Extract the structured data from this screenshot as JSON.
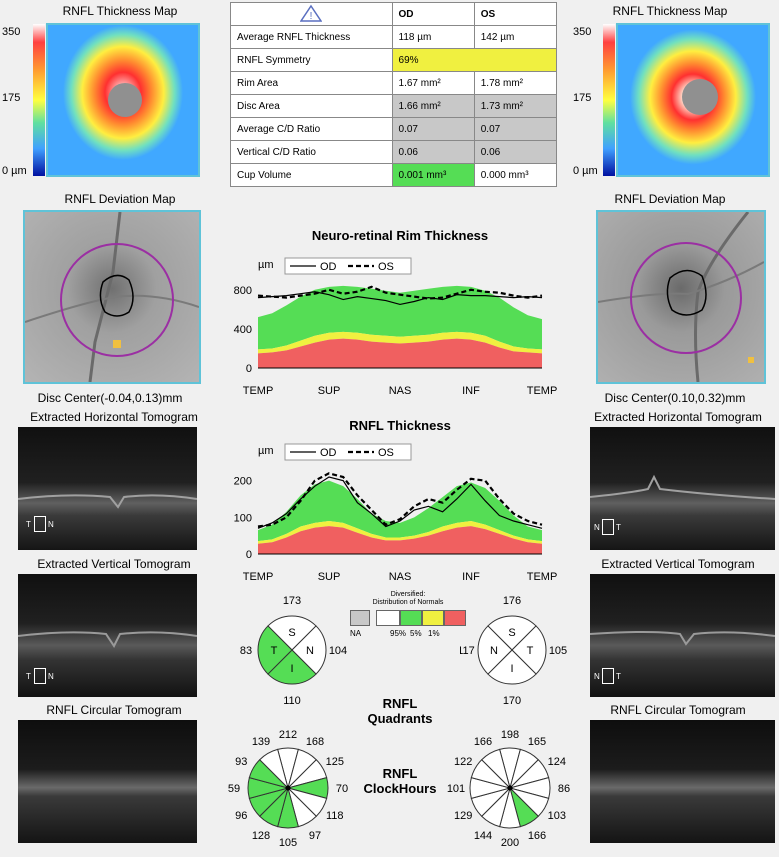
{
  "left": {
    "thickness_map_title": "RNFL Thickness Map",
    "scale_max": "350",
    "scale_mid": "175",
    "scale_min": "0 µm",
    "deviation_title": "RNFL Deviation Map",
    "disc_center": "Disc Center(-0.04,0.13)mm",
    "horiz_title": "Extracted Horizontal Tomogram",
    "vert_title": "Extracted Vertical Tomogram",
    "circ_title": "RNFL Circular Tomogram",
    "tomo_labels": {
      "t": "T",
      "n": "N"
    }
  },
  "right": {
    "thickness_map_title": "RNFL Thickness Map",
    "scale_max": "350",
    "scale_mid": "175",
    "scale_min": "0 µm",
    "deviation_title": "RNFL Deviation Map",
    "disc_center": "Disc Center(0.10,0.32)mm",
    "horiz_title": "Extracted Horizontal Tomogram",
    "vert_title": "Extracted Vertical Tomogram",
    "circ_title": "RNFL Circular Tomogram",
    "tomo_labels": {
      "n": "N",
      "t": "T"
    }
  },
  "summary": {
    "col_od": "OD",
    "col_os": "OS",
    "rows": [
      {
        "label": "Average RNFL Thickness",
        "od": "118 µm",
        "os": "142 µm",
        "style": "plain"
      },
      {
        "label": "RNFL Symmetry",
        "od": "69%",
        "os": "",
        "style": "yellow-span"
      },
      {
        "label": "Rim Area",
        "od": "1.67 mm²",
        "os": "1.78 mm²",
        "style": "plain"
      },
      {
        "label": "Disc Area",
        "od": "1.66 mm²",
        "os": "1.73 mm²",
        "style": "gray"
      },
      {
        "label": "Average C/D Ratio",
        "od": "0.07",
        "os": "0.07",
        "style": "gray"
      },
      {
        "label": "Vertical C/D Ratio",
        "od": "0.06",
        "os": "0.06",
        "style": "gray"
      },
      {
        "label": "Cup Volume",
        "od": "0.001 mm³",
        "os": "0.000 mm³",
        "style": "green-od"
      }
    ]
  },
  "colors": {
    "green": "#55dd55",
    "yellow": "#f0f040",
    "red": "#f06060",
    "gray": "#c8c8c8",
    "frame": "#5fc3d8",
    "circle": "#9b2fa3"
  },
  "chart_data": [
    {
      "type": "line",
      "title": "Neuro-retinal Rim Thickness",
      "ylabel": "µm",
      "ylim": [
        0,
        900
      ],
      "yticks": [
        "0",
        "400",
        "800"
      ],
      "xticks": [
        "TEMP",
        "SUP",
        "NAS",
        "INF",
        "TEMP"
      ],
      "legend": {
        "od": "OD",
        "os": "OS"
      },
      "x": [
        0,
        0.05,
        0.1,
        0.15,
        0.2,
        0.25,
        0.3,
        0.35,
        0.4,
        0.45,
        0.5,
        0.55,
        0.6,
        0.65,
        0.7,
        0.75,
        0.8,
        0.85,
        0.9,
        0.95,
        1
      ],
      "series": [
        {
          "name": "OD",
          "values": [
            720,
            730,
            740,
            760,
            780,
            750,
            700,
            730,
            710,
            690,
            650,
            680,
            720,
            700,
            750,
            740,
            740,
            730,
            720,
            730,
            720
          ]
        },
        {
          "name": "OS",
          "values": [
            740,
            730,
            720,
            740,
            760,
            800,
            760,
            780,
            830,
            770,
            750,
            730,
            710,
            720,
            760,
            800,
            780,
            770,
            740,
            720,
            740
          ]
        }
      ],
      "normals": {
        "p95": [
          520,
          560,
          640,
          730,
          800,
          830,
          840,
          830,
          810,
          790,
          770,
          790,
          810,
          830,
          840,
          830,
          790,
          720,
          620,
          540,
          500
        ],
        "p5": [
          190,
          200,
          230,
          280,
          330,
          360,
          370,
          360,
          340,
          330,
          320,
          330,
          340,
          360,
          370,
          360,
          330,
          270,
          220,
          200,
          190
        ],
        "p1": [
          150,
          160,
          180,
          220,
          260,
          290,
          300,
          290,
          270,
          260,
          250,
          260,
          270,
          290,
          300,
          290,
          260,
          210,
          170,
          160,
          150
        ]
      }
    },
    {
      "type": "line",
      "title": "RNFL Thickness",
      "ylabel": "µm",
      "ylim": [
        0,
        240
      ],
      "yticks": [
        "0",
        "100",
        "200"
      ],
      "xticks": [
        "TEMP",
        "SUP",
        "NAS",
        "INF",
        "TEMP"
      ],
      "legend": {
        "od": "OD",
        "os": "OS"
      },
      "x": [
        0,
        0.05,
        0.1,
        0.15,
        0.2,
        0.25,
        0.3,
        0.35,
        0.4,
        0.45,
        0.5,
        0.55,
        0.6,
        0.65,
        0.7,
        0.75,
        0.8,
        0.85,
        0.9,
        0.95,
        1
      ],
      "series": [
        {
          "name": "OD",
          "values": [
            70,
            85,
            110,
            150,
            185,
            210,
            200,
            140,
            110,
            75,
            90,
            120,
            130,
            115,
            150,
            190,
            145,
            105,
            90,
            80,
            70
          ]
        },
        {
          "name": "OS",
          "values": [
            75,
            80,
            100,
            145,
            200,
            220,
            210,
            160,
            120,
            80,
            95,
            130,
            150,
            140,
            175,
            205,
            200,
            150,
            110,
            90,
            80
          ]
        }
      ],
      "normals": {
        "p95": [
          65,
          80,
          115,
          160,
          190,
          200,
          185,
          150,
          110,
          90,
          85,
          100,
          125,
          155,
          185,
          195,
          180,
          145,
          105,
          75,
          65
        ],
        "p5": [
          35,
          40,
          55,
          75,
          85,
          90,
          85,
          70,
          55,
          45,
          45,
          50,
          60,
          75,
          85,
          90,
          80,
          65,
          50,
          40,
          35
        ],
        "p1": [
          28,
          32,
          45,
          62,
          72,
          76,
          72,
          58,
          45,
          37,
          37,
          42,
          50,
          62,
          72,
          76,
          68,
          55,
          42,
          32,
          28
        ]
      }
    }
  ],
  "legend_normals": {
    "title_line1": "Diversified:",
    "title_line2": "Distribution of Normals",
    "na": "NA",
    "p95": "95%",
    "p5": "5%",
    "p1": "1%"
  },
  "quadrants": {
    "label_line1": "RNFL",
    "label_line2": "Quadrants",
    "od": {
      "letters": {
        "top": "S",
        "left": "T",
        "right": "N",
        "bottom": "I"
      },
      "values": {
        "top": "173",
        "left": "83",
        "right": "104",
        "bottom": "110"
      },
      "colors": {
        "top": "white",
        "left": "green",
        "right": "white",
        "bottom": "green"
      }
    },
    "os": {
      "letters": {
        "top": "S",
        "left": "N",
        "right": "T",
        "bottom": "I"
      },
      "values": {
        "top": "176",
        "left": "117",
        "right": "105",
        "bottom": "170"
      },
      "colors": {
        "top": "white",
        "left": "white",
        "right": "white",
        "bottom": "white"
      }
    }
  },
  "clockhours": {
    "label_line1": "RNFL",
    "label_line2": "ClockHours",
    "od": {
      "values": [
        "212",
        "168",
        "125",
        "70",
        "118",
        "97",
        "105",
        "128",
        "96",
        "59",
        "93",
        "139"
      ],
      "colors": [
        "white",
        "white",
        "white",
        "green",
        "white",
        "white",
        "green",
        "green",
        "green",
        "green",
        "green",
        "white"
      ]
    },
    "os": {
      "values": [
        "198",
        "165",
        "124",
        "86",
        "103",
        "166",
        "200",
        "144",
        "129",
        "101",
        "122",
        "166"
      ],
      "colors": [
        "white",
        "white",
        "white",
        "white",
        "white",
        "green",
        "white",
        "white",
        "white",
        "white",
        "white",
        "white"
      ]
    }
  }
}
